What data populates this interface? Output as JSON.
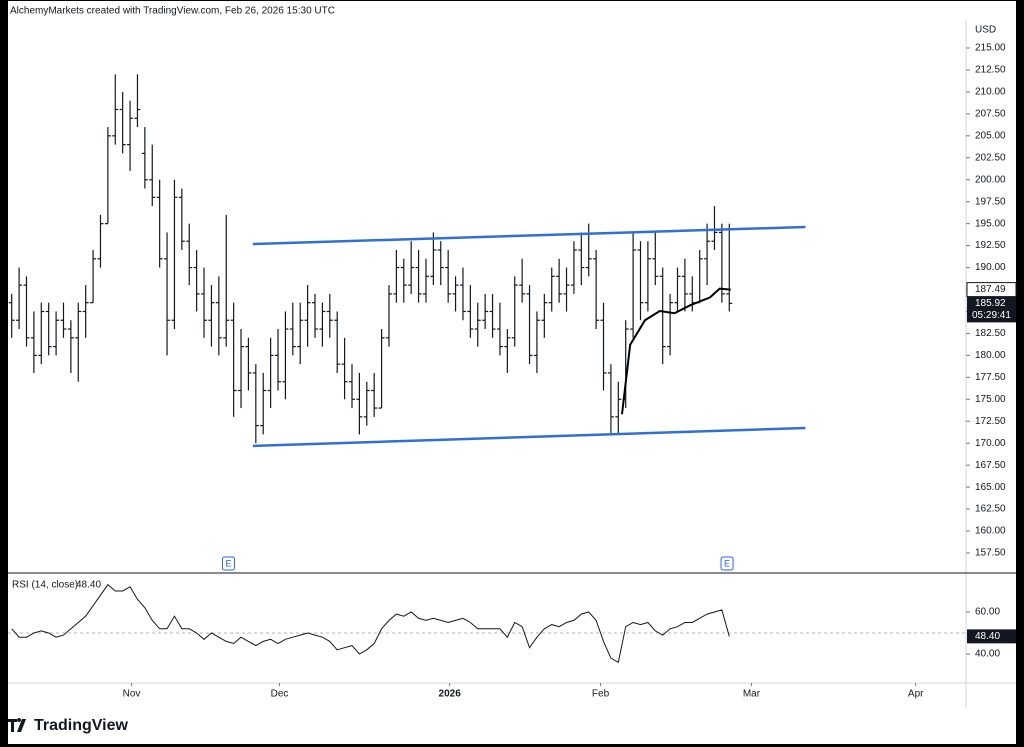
{
  "chart_data": {
    "type": "ohlc",
    "header": "AlchemyMarkets created with TradingView.com, Feb 26, 2026 15:30 UTC",
    "currency": "USD",
    "brand": "TradingView",
    "bar_color": "#131722",
    "bars": [
      [
        186,
        187,
        182,
        184
      ],
      [
        184,
        190,
        183,
        188
      ],
      [
        188,
        189,
        181,
        182
      ],
      [
        182,
        185,
        178,
        180
      ],
      [
        180,
        186,
        179,
        185
      ],
      [
        185,
        186,
        180,
        181
      ],
      [
        181,
        185,
        180,
        184
      ],
      [
        184,
        186,
        182,
        183
      ],
      [
        183,
        184,
        178,
        182
      ],
      [
        182,
        186,
        177,
        185
      ],
      [
        185,
        188,
        182,
        186
      ],
      [
        186,
        192,
        186,
        191
      ],
      [
        191,
        196,
        190,
        195
      ],
      [
        195,
        206,
        195,
        205
      ],
      [
        205,
        212,
        204,
        208
      ],
      [
        208,
        210,
        203,
        204
      ],
      [
        204,
        209,
        201,
        207
      ],
      [
        207,
        212,
        206,
        208
      ],
      [
        203,
        206,
        199,
        200
      ],
      [
        200,
        204,
        197,
        198
      ],
      [
        198,
        200,
        190,
        191
      ],
      [
        191,
        194,
        180,
        184
      ],
      [
        184,
        200,
        183,
        198
      ],
      [
        198,
        199,
        192,
        193
      ],
      [
        193,
        195,
        188,
        190
      ],
      [
        190,
        192,
        185,
        187
      ],
      [
        187,
        190,
        182,
        184
      ],
      [
        184,
        188,
        181,
        186
      ],
      [
        186,
        189,
        180,
        182
      ],
      [
        182,
        196,
        181,
        184
      ],
      [
        184,
        186,
        173,
        176
      ],
      [
        176,
        183,
        174,
        181
      ],
      [
        181,
        182,
        176,
        178
      ],
      [
        178,
        179,
        170,
        172
      ],
      [
        172,
        178,
        171,
        176
      ],
      [
        176,
        182,
        174,
        180
      ],
      [
        180,
        183,
        176,
        177
      ],
      [
        177,
        185,
        175,
        183
      ],
      [
        183,
        186,
        180,
        181
      ],
      [
        181,
        186,
        179,
        184
      ],
      [
        184,
        188,
        181,
        186
      ],
      [
        186,
        187,
        182,
        183
      ],
      [
        183,
        186,
        181,
        185
      ],
      [
        185,
        187,
        182,
        184
      ],
      [
        184,
        185,
        178,
        179
      ],
      [
        179,
        182,
        175,
        177
      ],
      [
        177,
        179,
        174,
        175
      ],
      [
        175,
        178,
        171,
        173
      ],
      [
        173,
        177,
        172,
        176
      ],
      [
        176,
        178,
        173,
        174
      ],
      [
        174,
        183,
        174,
        182
      ],
      [
        182,
        188,
        181,
        187
      ],
      [
        187,
        192,
        186,
        190
      ],
      [
        190,
        191,
        186,
        188
      ],
      [
        188,
        193,
        187,
        190
      ],
      [
        190,
        192,
        186,
        187
      ],
      [
        187,
        191,
        186,
        189
      ],
      [
        189,
        194,
        188,
        192
      ],
      [
        192,
        193,
        188,
        190
      ],
      [
        190,
        192,
        186,
        187
      ],
      [
        187,
        189,
        185,
        188
      ],
      [
        188,
        190,
        184,
        185
      ],
      [
        185,
        188,
        182,
        183
      ],
      [
        183,
        186,
        181,
        184
      ],
      [
        184,
        187,
        183,
        185
      ],
      [
        185,
        187,
        182,
        183
      ],
      [
        183,
        186,
        180,
        181
      ],
      [
        181,
        183,
        178,
        182
      ],
      [
        182,
        189,
        181,
        188
      ],
      [
        188,
        191,
        186,
        187
      ],
      [
        187,
        188,
        179,
        180
      ],
      [
        180,
        185,
        178,
        184
      ],
      [
        184,
        187,
        182,
        186
      ],
      [
        186,
        190,
        185,
        189
      ],
      [
        189,
        191,
        186,
        187
      ],
      [
        187,
        190,
        185,
        188
      ],
      [
        188,
        193,
        187,
        192
      ],
      [
        192,
        194,
        188,
        190
      ],
      [
        190,
        195,
        189,
        191
      ],
      [
        191,
        192,
        183,
        184
      ],
      [
        184,
        186,
        176,
        178
      ],
      [
        178,
        179,
        171,
        173
      ],
      [
        173,
        177,
        171,
        175
      ],
      [
        175,
        184,
        174,
        183
      ],
      [
        183,
        194,
        182,
        192
      ],
      [
        192,
        193,
        184,
        186
      ],
      [
        186,
        193,
        185,
        191
      ],
      [
        191,
        194,
        188,
        189
      ],
      [
        189,
        190,
        179,
        181
      ],
      [
        181,
        187,
        180,
        186
      ],
      [
        186,
        190,
        185,
        189
      ],
      [
        189,
        191,
        185,
        187
      ],
      [
        187,
        189,
        185,
        186
      ],
      [
        186,
        192,
        186,
        191
      ],
      [
        191,
        195,
        188,
        193
      ],
      [
        193,
        197,
        192,
        194
      ],
      [
        194,
        195,
        186,
        187
      ],
      [
        187,
        195,
        185,
        185.92
      ]
    ],
    "xlim": [
      -0.5,
      129
    ],
    "xticks": [
      {
        "value": 16.2,
        "label": "Nov"
      },
      {
        "value": 36.2,
        "label": "Dec"
      },
      {
        "value": 59.2,
        "label": "2026"
      },
      {
        "value": 79.6,
        "label": "Feb"
      },
      {
        "value": 100,
        "label": "Mar"
      },
      {
        "value": 122.2,
        "label": "Apr"
      }
    ],
    "ylim": [
      155.22,
      218.19
    ],
    "yticks": [
      {
        "value": 157.5,
        "label": "157.50"
      },
      {
        "value": 160,
        "label": "160.00"
      },
      {
        "value": 162.5,
        "label": "162.50"
      },
      {
        "value": 165,
        "label": "165.00"
      },
      {
        "value": 167.5,
        "label": "167.50"
      },
      {
        "value": 170,
        "label": "170.00"
      },
      {
        "value": 172.5,
        "label": "172.50"
      },
      {
        "value": 175,
        "label": "175.00"
      },
      {
        "value": 177.5,
        "label": "177.50"
      },
      {
        "value": 180,
        "label": "180.00"
      },
      {
        "value": 182.5,
        "label": "182.50"
      },
      {
        "value": 185,
        "label": "185.00"
      },
      {
        "value": 187.5,
        "label": "187.50"
      },
      {
        "value": 190,
        "label": "190.00"
      },
      {
        "value": 192.5,
        "label": "192.50"
      },
      {
        "value": 195,
        "label": "195.00"
      },
      {
        "value": 197.5,
        "label": "197.50"
      },
      {
        "value": 200,
        "label": "200.00"
      },
      {
        "value": 202.5,
        "label": "202.50"
      },
      {
        "value": 205,
        "label": "205.00"
      },
      {
        "value": 207.5,
        "label": "207.50"
      },
      {
        "value": 210,
        "label": "210.00"
      },
      {
        "value": 212.5,
        "label": "212.50"
      },
      {
        "value": 215,
        "label": "215.00"
      }
    ],
    "trendlines": [
      {
        "color": "#2f6fd6",
        "x": [
          32.6,
          107.3
        ],
        "values": [
          192.68,
          194.62
        ]
      },
      {
        "color": "#2f6fd6",
        "x": [
          32.6,
          107.3
        ],
        "values": [
          169.69,
          171.73
        ]
      }
    ],
    "ma": {
      "color": "#000000",
      "x": [
        82.5,
        83.6,
        85.6,
        87.6,
        89.6,
        91.7,
        94.4,
        95.7,
        97.2
      ],
      "values": [
        173.3,
        181.2,
        184.0,
        185.05,
        184.8,
        185.7,
        186.6,
        187.6,
        187.49
      ]
    },
    "price_markers": [
      {
        "value": 187.49,
        "label": "187.49"
      },
      {
        "value": 185.92,
        "label": "185.92",
        "countdown": "05:29:41"
      }
    ],
    "events": [
      {
        "x": 29.3,
        "label": "E"
      },
      {
        "x": 96.7,
        "label": "E"
      }
    ],
    "rsi": {
      "title": "RSI (14, close)",
      "last_label": "48.40",
      "color": "#131722",
      "values": [
        52,
        48,
        48,
        50,
        51,
        50,
        48,
        49,
        52,
        55,
        58,
        63,
        68,
        73,
        70,
        70,
        72,
        66,
        62,
        56,
        52,
        52,
        58,
        52,
        52,
        50,
        47,
        50,
        48,
        46,
        45,
        48,
        46,
        44,
        46,
        47,
        45,
        47,
        48,
        49,
        50,
        49,
        48,
        46,
        42,
        43,
        44,
        40,
        42,
        45,
        52,
        56,
        59,
        58,
        60,
        57,
        56,
        57,
        56,
        55,
        56,
        57,
        55,
        52,
        52,
        52,
        52,
        48,
        55,
        53,
        43,
        48,
        52,
        54,
        53,
        55,
        56,
        59,
        60,
        56,
        46,
        38,
        36,
        53,
        55,
        54,
        55,
        51,
        49,
        52,
        53,
        55,
        55,
        57,
        59,
        60,
        61,
        48.4
      ],
      "ylim": [
        26.2,
        77.6
      ],
      "yticks": [
        {
          "value": 40,
          "label": "40.00"
        },
        {
          "value": 60,
          "label": "60.00"
        }
      ],
      "midline": 50
    }
  }
}
